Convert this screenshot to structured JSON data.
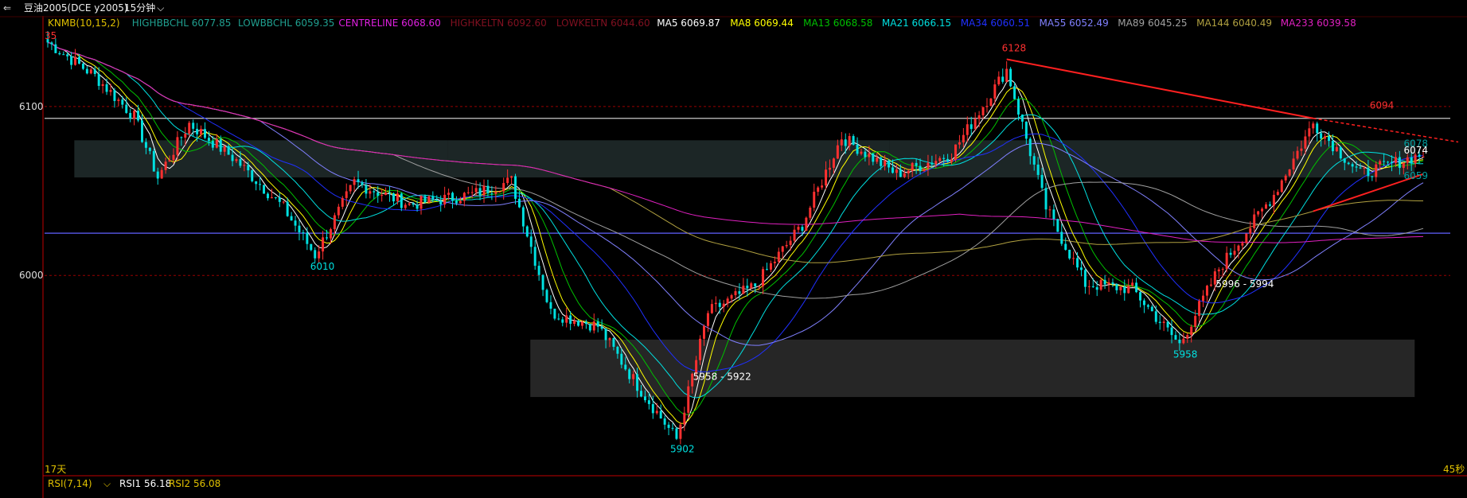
{
  "window": {
    "back_glyph": "⇐",
    "title": "豆油2005(DCE y2005)",
    "period": "15分钟",
    "chevron": "⌵"
  },
  "legend": [
    {
      "text": "KNMB(10,15,2)",
      "color": "#e0c000",
      "interactable": true
    },
    {
      "text": "HIGHBBCHL 6077.85",
      "color": "#20a090"
    },
    {
      "text": "LOWBBCHL 6059.35",
      "color": "#20a090"
    },
    {
      "text": "CENTRELINE 6068.60",
      "color": "#e020e0"
    },
    {
      "text": "HIGHKELTN 6092.60",
      "color": "#801020"
    },
    {
      "text": "LOWKELTN 6044.60",
      "color": "#801020"
    },
    {
      "text": "MA5 6069.87",
      "color": "#ffffff"
    },
    {
      "text": "MA8 6069.44",
      "color": "#ffff00"
    },
    {
      "text": "MA13 6068.58",
      "color": "#00c000"
    },
    {
      "text": "MA21 6066.15",
      "color": "#00e0e0"
    },
    {
      "text": "MA34 6060.51",
      "color": "#2030ff"
    },
    {
      "text": "MA55 6052.49",
      "color": "#8080ff"
    },
    {
      "text": "MA89 6045.25",
      "color": "#a0a0a0"
    },
    {
      "text": "MA144 6040.49",
      "color": "#b0a040"
    },
    {
      "text": "MA233 6039.58",
      "color": "#e020c0"
    }
  ],
  "top_left_fragment": "35",
  "bottom_left_label": "17天",
  "bottom_right_label": "45秒",
  "rsi_bar": {
    "label": "RSI(7,14)",
    "rsi1": "RSI1 56.18",
    "rsi2": "RSI2 56.08",
    "colors": {
      "label": "#e0c000",
      "rsi1": "#ffffff",
      "rsi2": "#e0c000"
    }
  },
  "annotations": {
    "high_6128": "6128",
    "low_6010": "6010",
    "low_5902": "5902",
    "range_5958_5922": "5958 - 5922",
    "range_5996_5994": "5996 - 5994",
    "low_5958": "5958",
    "high_6094": "6094",
    "val_6078": "6078",
    "val_6074": "6074",
    "val_6059": "6059"
  },
  "chart_data": {
    "type": "candlestick",
    "timeframe": "15分钟",
    "y_ticks": [
      6100,
      6000
    ],
    "y_tick_labels": [
      "6100",
      "6000"
    ],
    "ylim": [
      5888,
      6148
    ],
    "horizontal_lines": [
      {
        "value": 6093,
        "color": "#c8c8c8"
      },
      {
        "value": 6025,
        "color": "#6060ff"
      }
    ],
    "dotted_red_lines": [
      6100,
      6000
    ],
    "price_path_anchors": [
      {
        "i": 0,
        "price": 6138
      },
      {
        "i": 12,
        "price": 6118
      },
      {
        "i": 22,
        "price": 6094
      },
      {
        "i": 28,
        "price": 6058
      },
      {
        "i": 36,
        "price": 6090
      },
      {
        "i": 48,
        "price": 6068
      },
      {
        "i": 60,
        "price": 6040
      },
      {
        "i": 68,
        "price": 6012
      },
      {
        "i": 78,
        "price": 6055
      },
      {
        "i": 92,
        "price": 6042
      },
      {
        "i": 108,
        "price": 6048
      },
      {
        "i": 118,
        "price": 6056
      },
      {
        "i": 128,
        "price": 5978
      },
      {
        "i": 140,
        "price": 5970
      },
      {
        "i": 150,
        "price": 5935
      },
      {
        "i": 160,
        "price": 5903
      },
      {
        "i": 168,
        "price": 5978
      },
      {
        "i": 180,
        "price": 5994
      },
      {
        "i": 192,
        "price": 6030
      },
      {
        "i": 202,
        "price": 6082
      },
      {
        "i": 216,
        "price": 6060
      },
      {
        "i": 230,
        "price": 6072
      },
      {
        "i": 244,
        "price": 6122
      },
      {
        "i": 254,
        "price": 6040
      },
      {
        "i": 264,
        "price": 5995
      },
      {
        "i": 276,
        "price": 5992
      },
      {
        "i": 288,
        "price": 5959
      },
      {
        "i": 298,
        "price": 6004
      },
      {
        "i": 312,
        "price": 6048
      },
      {
        "i": 322,
        "price": 6090
      },
      {
        "i": 334,
        "price": 6060
      },
      {
        "i": 350,
        "price": 6072
      }
    ],
    "candle_count": 351,
    "labels": [
      {
        "text": "6128",
        "price": 6128
      },
      {
        "text": "6010",
        "price": 6010
      },
      {
        "text": "5902",
        "price": 5902
      },
      {
        "text": "5958 - 5922",
        "price": 5940
      },
      {
        "text": "5996 - 5994",
        "price": 5995
      },
      {
        "text": "5958",
        "price": 5958
      },
      {
        "text": "6094",
        "price": 6094
      },
      {
        "text": "6078",
        "price": 6078
      },
      {
        "text": "6074",
        "price": 6074
      },
      {
        "text": "6059",
        "price": 6059
      }
    ],
    "zones": [
      {
        "from": 6080,
        "to": 6058,
        "color": "#1c2626"
      },
      {
        "from": 5962,
        "to": 5928,
        "color": "#262626"
      }
    ],
    "trendline": {
      "from_price": 6128,
      "to_price": 6085,
      "color": "#ff2020"
    },
    "support_line": {
      "from_price": 6038,
      "to_price": 6060,
      "color": "#ff2020"
    },
    "colors": {
      "up_candle": "#ff3030",
      "down_candle": "#00e0e0",
      "background": "#000000",
      "frame": "#c00000"
    }
  }
}
